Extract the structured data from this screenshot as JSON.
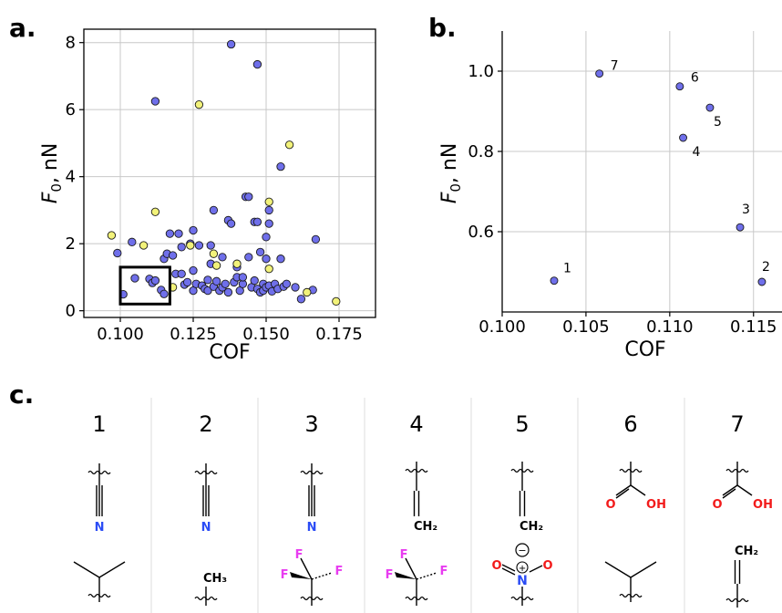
{
  "panels": {
    "a": "a.",
    "b": "b.",
    "c": "c."
  },
  "colors": {
    "blue": "#6f6fea",
    "yellow": "#f2f27a",
    "grid": "#c8c8c8",
    "nitrogen": "#2b4cf5",
    "oxygen": "#f21b1b",
    "fluorine": "#e83cf0"
  },
  "chart_data": [
    {
      "type": "scatter",
      "panel": "a.",
      "xlabel": "COF",
      "ylabel": "F₀, nN",
      "xlim": [
        0.0875,
        0.1875
      ],
      "ylim": [
        -0.2,
        8.4
      ],
      "xticks": [
        0.1,
        0.125,
        0.15,
        0.175
      ],
      "xtick_labels": [
        "0.100",
        "0.125",
        "0.150",
        "0.175"
      ],
      "yticks": [
        0,
        2,
        4,
        6,
        8
      ],
      "ytick_labels": [
        "0",
        "2",
        "4",
        "6",
        "8"
      ],
      "grid": true,
      "highlight_box": {
        "x": [
          0.1,
          0.117
        ],
        "y": [
          0.2,
          1.3
        ]
      },
      "series": [
        {
          "color": "blue",
          "points": [
            [
              0.099,
              1.72
            ],
            [
              0.101,
              0.49
            ],
            [
              0.104,
              2.05
            ],
            [
              0.105,
              0.97
            ],
            [
              0.11,
              0.95
            ],
            [
              0.111,
              0.83
            ],
            [
              0.112,
              0.9
            ],
            [
              0.112,
              6.25
            ],
            [
              0.114,
              0.62
            ],
            [
              0.115,
              0.5
            ],
            [
              0.115,
              1.55
            ],
            [
              0.116,
              1.7
            ],
            [
              0.117,
              2.3
            ],
            [
              0.118,
              1.65
            ],
            [
              0.119,
              1.1
            ],
            [
              0.12,
              2.3
            ],
            [
              0.121,
              1.1
            ],
            [
              0.121,
              1.9
            ],
            [
              0.122,
              0.78
            ],
            [
              0.123,
              0.85
            ],
            [
              0.124,
              2.0
            ],
            [
              0.125,
              0.6
            ],
            [
              0.125,
              1.2
            ],
            [
              0.125,
              2.4
            ],
            [
              0.126,
              0.8
            ],
            [
              0.127,
              1.95
            ],
            [
              0.128,
              0.75
            ],
            [
              0.129,
              0.65
            ],
            [
              0.13,
              0.92
            ],
            [
              0.13,
              0.6
            ],
            [
              0.131,
              1.4
            ],
            [
              0.131,
              1.95
            ],
            [
              0.132,
              0.72
            ],
            [
              0.132,
              3.0
            ],
            [
              0.133,
              0.88
            ],
            [
              0.134,
              0.6
            ],
            [
              0.135,
              0.7
            ],
            [
              0.135,
              1.6
            ],
            [
              0.136,
              0.8
            ],
            [
              0.137,
              0.55
            ],
            [
              0.137,
              2.7
            ],
            [
              0.138,
              2.6
            ],
            [
              0.138,
              7.95
            ],
            [
              0.139,
              0.85
            ],
            [
              0.14,
              1.0
            ],
            [
              0.14,
              1.3
            ],
            [
              0.141,
              0.6
            ],
            [
              0.142,
              0.8
            ],
            [
              0.142,
              1.0
            ],
            [
              0.143,
              3.4
            ],
            [
              0.144,
              1.6
            ],
            [
              0.145,
              0.7
            ],
            [
              0.146,
              0.9
            ],
            [
              0.146,
              2.65
            ],
            [
              0.147,
              0.65
            ],
            [
              0.147,
              7.35
            ],
            [
              0.148,
              0.55
            ],
            [
              0.148,
              1.75
            ],
            [
              0.149,
              0.8
            ],
            [
              0.149,
              0.6
            ],
            [
              0.15,
              1.55
            ],
            [
              0.15,
              0.7
            ],
            [
              0.151,
              2.6
            ],
            [
              0.151,
              3.0
            ],
            [
              0.151,
              0.75
            ],
            [
              0.152,
              0.58
            ],
            [
              0.153,
              0.8
            ],
            [
              0.154,
              0.65
            ],
            [
              0.155,
              1.55
            ],
            [
              0.155,
              4.3
            ],
            [
              0.156,
              0.72
            ],
            [
              0.157,
              0.8
            ],
            [
              0.16,
              0.7
            ],
            [
              0.162,
              0.35
            ],
            [
              0.166,
              0.62
            ],
            [
              0.167,
              2.13
            ],
            [
              0.144,
              3.4
            ],
            [
              0.147,
              2.65
            ],
            [
              0.15,
              2.2
            ]
          ]
        },
        {
          "color": "yellow",
          "points": [
            [
              0.097,
              2.25
            ],
            [
              0.108,
              1.95
            ],
            [
              0.112,
              2.95
            ],
            [
              0.118,
              0.7
            ],
            [
              0.124,
              1.95
            ],
            [
              0.127,
              6.15
            ],
            [
              0.132,
              1.7
            ],
            [
              0.133,
              1.35
            ],
            [
              0.14,
              1.4
            ],
            [
              0.151,
              3.25
            ],
            [
              0.151,
              1.25
            ],
            [
              0.158,
              4.95
            ],
            [
              0.164,
              0.55
            ],
            [
              0.174,
              0.28
            ]
          ]
        }
      ]
    },
    {
      "type": "scatter",
      "panel": "b.",
      "xlabel": "COF",
      "ylabel": "F₀, nN",
      "xlim": [
        0.1,
        0.1167
      ],
      "ylim": [
        0.4,
        1.1
      ],
      "xticks": [
        0.1,
        0.105,
        0.11,
        0.115
      ],
      "xtick_labels": [
        "0.100",
        "0.105",
        "0.110",
        "0.115"
      ],
      "yticks": [
        0.6,
        0.8,
        1.0
      ],
      "ytick_labels": [
        "0.6",
        "0.8",
        "1.0"
      ],
      "grid": true,
      "points": [
        {
          "label": "1",
          "x": 0.1031,
          "y": 0.478
        },
        {
          "label": "2",
          "x": 0.1155,
          "y": 0.475
        },
        {
          "label": "3",
          "x": 0.1142,
          "y": 0.611
        },
        {
          "label": "4",
          "x": 0.1108,
          "y": 0.834
        },
        {
          "label": "5",
          "x": 0.1124,
          "y": 0.909
        },
        {
          "label": "6",
          "x": 0.1106,
          "y": 0.962
        },
        {
          "label": "7",
          "x": 0.1058,
          "y": 0.994
        }
      ]
    }
  ],
  "molecules": {
    "numbers": [
      "1",
      "2",
      "3",
      "4",
      "5",
      "6",
      "7"
    ],
    "labels": {
      "N": "N",
      "CH2": "CH₂",
      "O": "O",
      "OH": "OH",
      "CH3": "CH₃",
      "F": "F",
      "plus": "+",
      "minus": "−"
    }
  }
}
